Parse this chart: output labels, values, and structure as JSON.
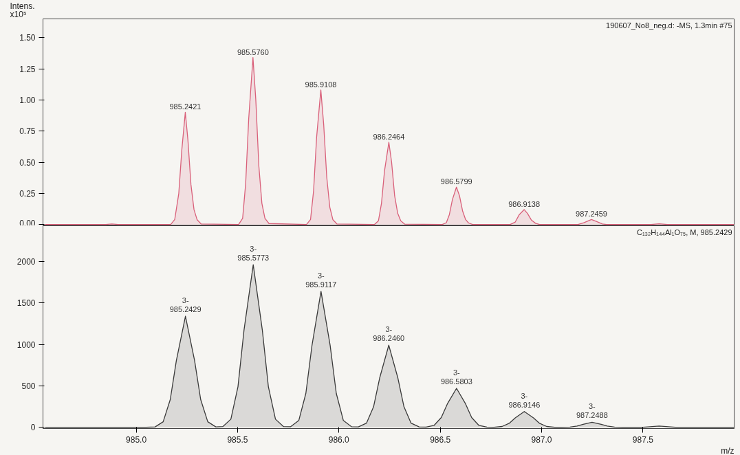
{
  "chart_data": [
    {
      "type": "area",
      "ylabel": "Intens.\nx10⁵",
      "xlim": [
        984.54,
        987.95
      ],
      "ylim": [
        -0.01,
        1.65
      ],
      "yticks": [
        {
          "value": 0,
          "label": "0.00"
        },
        {
          "value": 0.25,
          "label": "0.25"
        },
        {
          "value": 0.5,
          "label": "0.50"
        },
        {
          "value": 0.75,
          "label": "0.75"
        },
        {
          "value": 1.0,
          "label": "1.00"
        },
        {
          "value": 1.25,
          "label": "1.25"
        },
        {
          "value": 1.5,
          "label": "1.50"
        }
      ],
      "tick_labels": "y",
      "grid": false,
      "series": [
        {
          "color": "#d9607a",
          "x": [
            984.55,
            984.85,
            984.88,
            984.91,
            985.17,
            985.19,
            985.21,
            985.225,
            985.2421,
            985.255,
            985.27,
            985.285,
            985.3,
            985.32,
            985.505,
            985.525,
            985.54,
            985.555,
            985.576,
            985.59,
            985.605,
            985.62,
            985.635,
            985.655,
            985.84,
            985.86,
            985.875,
            985.89,
            985.9108,
            985.925,
            985.94,
            985.955,
            985.97,
            985.99,
            986.175,
            986.195,
            986.21,
            986.225,
            986.2464,
            986.26,
            986.275,
            986.29,
            986.305,
            986.325,
            986.51,
            986.53,
            986.545,
            986.56,
            986.5799,
            986.595,
            986.61,
            986.625,
            986.64,
            986.66,
            986.845,
            986.87,
            986.89,
            986.9138,
            986.93,
            986.95,
            986.97,
            986.99,
            987.18,
            987.21,
            987.2459,
            987.27,
            987.3,
            987.32,
            987.54,
            987.58,
            987.62,
            987.95
          ],
          "values": [
            0,
            0,
            0.004,
            0,
            0,
            0.04,
            0.25,
            0.6,
            0.9,
            0.68,
            0.32,
            0.12,
            0.04,
            0.005,
            0,
            0.05,
            0.33,
            0.85,
            1.34,
            1.0,
            0.47,
            0.17,
            0.05,
            0.008,
            0,
            0.04,
            0.27,
            0.7,
            1.08,
            0.8,
            0.38,
            0.14,
            0.04,
            0.005,
            0,
            0.03,
            0.17,
            0.43,
            0.66,
            0.5,
            0.23,
            0.09,
            0.03,
            0.003,
            0,
            0.015,
            0.08,
            0.2,
            0.3,
            0.23,
            0.11,
            0.04,
            0.012,
            0,
            0,
            0.02,
            0.08,
            0.12,
            0.09,
            0.035,
            0.01,
            0,
            0,
            0.015,
            0.04,
            0.025,
            0.005,
            0,
            0,
            0.006,
            0,
            0
          ]
        }
      ],
      "annotations": [
        "190607_No8_neg.d: -MS, 1.3min #75",
        {
          "text": "985.2421",
          "x": 985.2421,
          "y": 0.9
        },
        {
          "text": "985.5760",
          "x": 985.576,
          "y": 1.34
        },
        {
          "text": "985.9108",
          "x": 985.9108,
          "y": 1.08
        },
        {
          "text": "986.2464",
          "x": 986.2464,
          "y": 0.66
        },
        {
          "text": "986.5799",
          "x": 986.5799,
          "y": 0.3
        },
        {
          "text": "986.9138",
          "x": 986.9138,
          "y": 0.12
        },
        {
          "text": "987.2459",
          "x": 987.2459,
          "y": 0.04
        }
      ]
    },
    {
      "type": "area",
      "xlabel": "m/z",
      "xlim": [
        984.54,
        987.95
      ],
      "ylim": [
        -15,
        2430
      ],
      "xticks": [
        {
          "value": 985.0,
          "label": "985.0"
        },
        {
          "value": 985.5,
          "label": "985.5"
        },
        {
          "value": 986.0,
          "label": "986.0"
        },
        {
          "value": 986.5,
          "label": "986.5"
        },
        {
          "value": 987.0,
          "label": "987.0"
        },
        {
          "value": 987.5,
          "label": "987.5"
        }
      ],
      "yticks": [
        0,
        500,
        1000,
        1500,
        2000
      ],
      "grid": false,
      "series": [
        {
          "color": "#3a3a3a",
          "x": [
            984.55,
            985.05,
            985.093,
            985.133,
            985.168,
            985.198,
            985.2429,
            985.288,
            985.318,
            985.353,
            985.393,
            985.427,
            985.467,
            985.502,
            985.532,
            985.5773,
            985.622,
            985.652,
            985.687,
            985.727,
            985.762,
            985.802,
            985.837,
            985.867,
            985.9117,
            985.957,
            985.987,
            986.022,
            986.062,
            986.096,
            986.136,
            986.171,
            986.201,
            986.246,
            986.291,
            986.321,
            986.356,
            986.396,
            986.43,
            986.47,
            986.505,
            986.535,
            986.5803,
            986.625,
            986.655,
            986.69,
            986.73,
            986.765,
            986.805,
            986.84,
            986.87,
            986.9146,
            986.96,
            986.99,
            987.025,
            987.065,
            987.1,
            987.14,
            987.175,
            987.205,
            987.2488,
            987.294,
            987.324,
            987.36,
            987.4,
            987.5,
            987.58,
            987.66,
            987.95
          ],
          "values": [
            0,
            0,
            5,
            67,
            335,
            804,
            1340,
            804,
            335,
            67,
            5,
            8,
            98,
            490,
            1176,
            1960,
            1176,
            490,
            98,
            8,
            7,
            82,
            410,
            984,
            1640,
            984,
            410,
            82,
            7,
            4,
            50,
            248,
            594,
            990,
            594,
            248,
            50,
            4,
            2,
            24,
            118,
            282,
            470,
            282,
            118,
            24,
            2,
            1,
            10,
            48,
            114,
            190,
            114,
            48,
            10,
            1,
            0,
            3,
            15,
            36,
            60,
            36,
            15,
            3,
            0,
            0,
            15,
            0,
            0
          ]
        }
      ],
      "annotations": [
        "C₁₃₂H₁₄₄Al₁O₇₅, M, 985.2429",
        {
          "text": "3-\n985.2429",
          "x": 985.2429,
          "y": 1340
        },
        {
          "text": "3-\n985.5773",
          "x": 985.5773,
          "y": 1960
        },
        {
          "text": "3-\n985.9117",
          "x": 985.9117,
          "y": 1640
        },
        {
          "text": "3-\n986.2460",
          "x": 986.246,
          "y": 990
        },
        {
          "text": "3-\n986.5803",
          "x": 986.5803,
          "y": 470
        },
        {
          "text": "3-\n986.9146",
          "x": 986.9146,
          "y": 190
        },
        {
          "text": "3-\n987.2488",
          "x": 987.2488,
          "y": 60
        }
      ]
    }
  ]
}
